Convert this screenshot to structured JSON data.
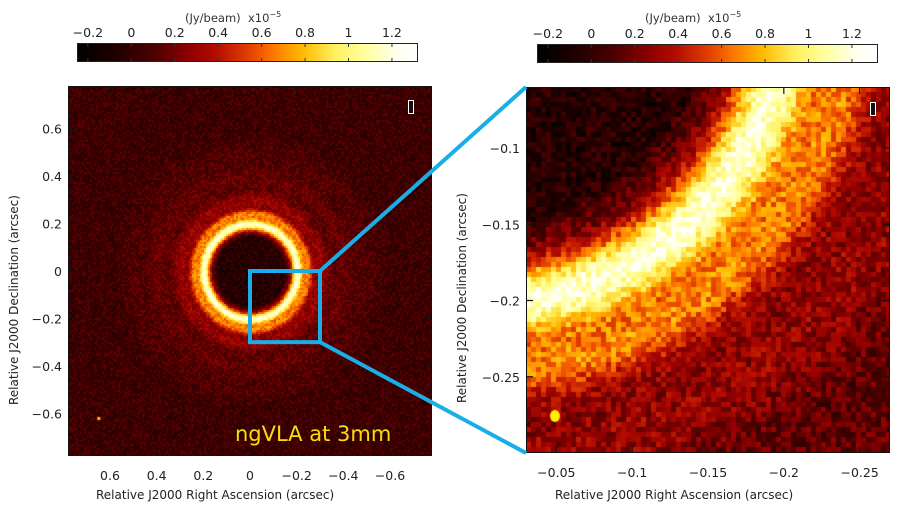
{
  "chart_data": [
    {
      "type": "heatmap",
      "panel": "left",
      "title": "",
      "xlabel": "Relative J2000 Right Ascension (arcsec)",
      "ylabel": "Relative J2000 Declination (arcsec)",
      "xlim": [
        0.78,
        -0.78
      ],
      "ylim": [
        -0.78,
        0.78
      ],
      "x_ticks": [
        "0.6",
        "0.4",
        "0.2",
        "0",
        "−0.2",
        "−0.4",
        "−0.6"
      ],
      "x_tick_values": [
        0.6,
        0.4,
        0.2,
        0,
        -0.2,
        -0.4,
        -0.6
      ],
      "y_ticks": [
        "0.6",
        "0.4",
        "0.2",
        "0",
        "−0.2",
        "−0.4",
        "−0.6"
      ],
      "y_tick_values": [
        0.6,
        0.4,
        0.2,
        0,
        -0.2,
        -0.4,
        -0.6
      ],
      "stokes_label": "I",
      "annotation": "ngVLA at 3mm",
      "features": {
        "inner_cavity_radius_arcsec": 0.15,
        "bright_ring_radius_arcsec": 0.2,
        "outer_rings_radii_arcsec": [
          0.3,
          0.4,
          0.5
        ],
        "beam_position_arcsec": [
          0.65,
          -0.62
        ]
      },
      "zoom_box": {
        "ra": [
          0,
          -0.3
        ],
        "dec": [
          -0.3,
          0
        ]
      },
      "colorbar": {
        "title": "(Jy/beam)",
        "scale": "x10",
        "scale_exponent": "−5",
        "ticks": [
          "−0.2",
          "0",
          "0.2",
          "0.4",
          "0.6",
          "0.8",
          "1",
          "1.2"
        ],
        "tick_values": [
          -0.2,
          0,
          0.2,
          0.4,
          0.6,
          0.8,
          1.0,
          1.2
        ],
        "range": [
          -0.25,
          1.32
        ]
      }
    },
    {
      "type": "heatmap",
      "panel": "right",
      "title": "",
      "xlabel": "Relative J2000 Right Ascension (arcsec)",
      "ylabel": "Relative J2000 Declination (arcsec)",
      "xlim": [
        -0.03,
        -0.27
      ],
      "ylim": [
        -0.3,
        -0.06
      ],
      "x_ticks": [
        "−0.05",
        "−0.1",
        "−0.15",
        "−0.2",
        "−0.25"
      ],
      "x_tick_values": [
        -0.05,
        -0.1,
        -0.15,
        -0.2,
        -0.25
      ],
      "y_ticks": [
        "−0.1",
        "−0.15",
        "−0.2",
        "−0.25"
      ],
      "y_tick_values": [
        -0.1,
        -0.15,
        -0.2,
        -0.25
      ],
      "stokes_label": "I",
      "colorbar": {
        "title": "(Jy/beam)",
        "scale": "x10",
        "scale_exponent": "−5",
        "ticks": [
          "−0.2",
          "0",
          "0.2",
          "0.4",
          "0.6",
          "0.8",
          "1",
          "1.2"
        ],
        "tick_values": [
          -0.2,
          0,
          0.2,
          0.4,
          0.6,
          0.8,
          1.0,
          1.2
        ],
        "range": [
          -0.25,
          1.32
        ]
      }
    }
  ],
  "colors": {
    "zoom_box": "#1aaee8",
    "annotation_text": "#f0e010",
    "background_field": "#6e0000"
  }
}
